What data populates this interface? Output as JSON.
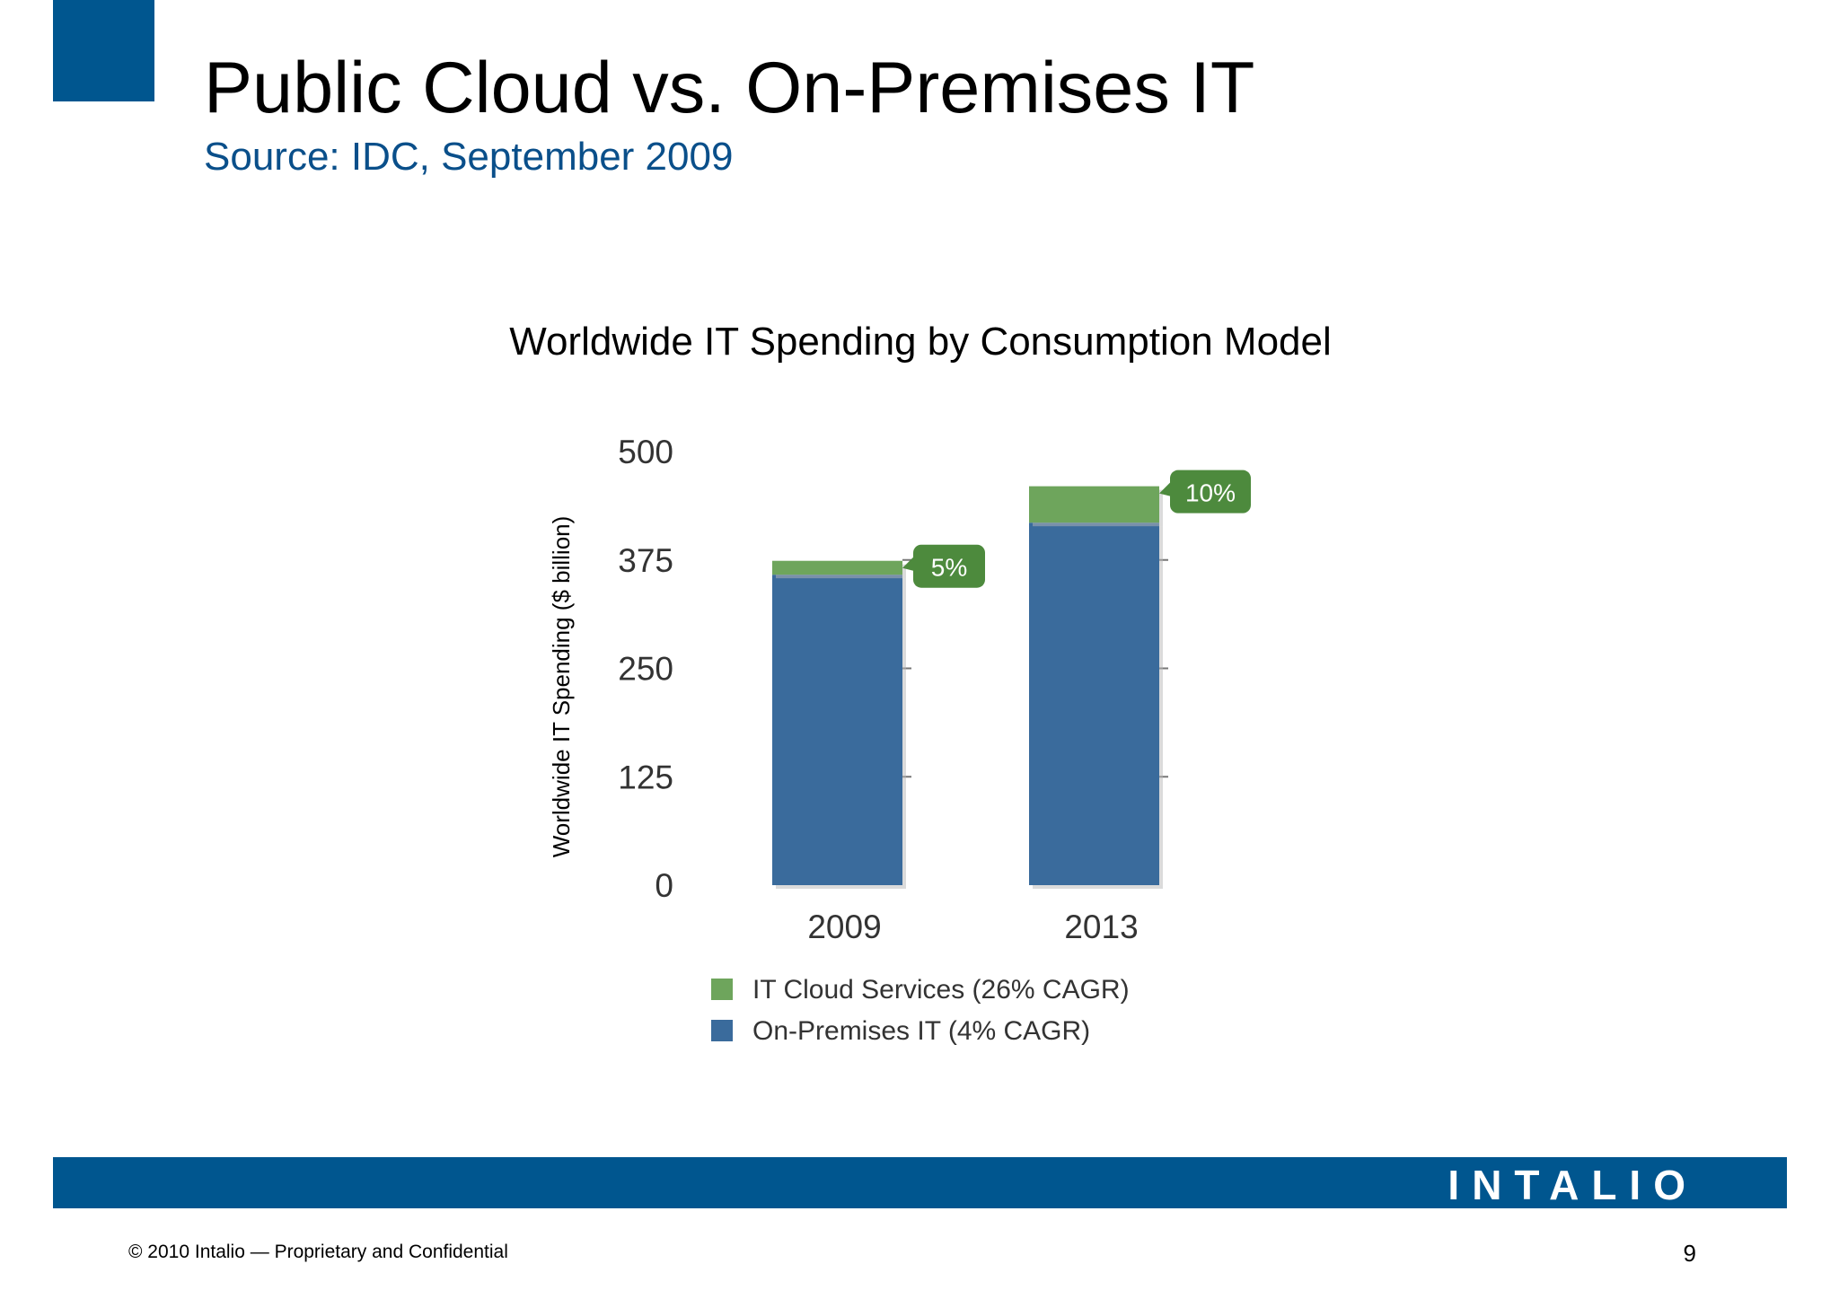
{
  "slide": {
    "title": "Public Cloud vs. On-Premises IT",
    "subtitle": "Source: IDC, September 2009",
    "colors": {
      "brand_blue": "#00568f",
      "subtitle": "#0a4f8a"
    }
  },
  "chart_data": {
    "type": "bar",
    "stacked": true,
    "title": "Worldwide IT Spending by Consumption Model",
    "xlabel": "",
    "ylabel": "Worldwide IT Spending ($ billion)",
    "categories": [
      "2009",
      "2013"
    ],
    "ylim": [
      0,
      500
    ],
    "yticks": [
      "0",
      "125",
      "250",
      "375",
      "500"
    ],
    "series": [
      {
        "name": "On-Premises IT (4% CAGR)",
        "values": [
          358,
          418
        ],
        "color": "#3a6b9c"
      },
      {
        "name": "IT Cloud Services (26% CAGR)",
        "values": [
          16,
          42
        ],
        "color": "#6ea55c"
      }
    ],
    "annotations": [
      "5%",
      "10%"
    ],
    "annotation_color": "#4d8a3d",
    "legend": "bottom",
    "grid": false
  },
  "footer": {
    "logo": "INTALIO",
    "copyright": "© 2010 Intalio — Proprietary and Confidential",
    "page_number": "9"
  }
}
